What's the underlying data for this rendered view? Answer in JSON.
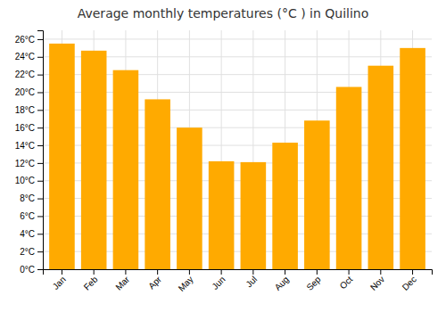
{
  "chart_data": {
    "type": "bar",
    "title": "Average monthly temperatures (°C ) in Quilino",
    "categories": [
      "Jan",
      "Feb",
      "Mar",
      "Apr",
      "May",
      "Jun",
      "Jul",
      "Aug",
      "Sep",
      "Oct",
      "Nov",
      "Dec"
    ],
    "values": [
      25.5,
      24.7,
      22.5,
      19.2,
      16.0,
      12.2,
      12.1,
      14.3,
      16.8,
      20.6,
      23.0,
      25.0
    ],
    "color": "#FFAA00",
    "ylim": [
      0,
      27
    ],
    "yticks": [
      {
        "value": 0,
        "label": "0°C"
      },
      {
        "value": 2,
        "label": "2°C"
      },
      {
        "value": 4,
        "label": "4°C"
      },
      {
        "value": 6,
        "label": "6°C"
      },
      {
        "value": 8,
        "label": "8°C"
      },
      {
        "value": 10,
        "label": "10°C"
      },
      {
        "value": 12,
        "label": "12°C"
      },
      {
        "value": 14,
        "label": "14°C"
      },
      {
        "value": 16,
        "label": "16°C"
      },
      {
        "value": 18,
        "label": "18°C"
      },
      {
        "value": 20,
        "label": "20°C"
      },
      {
        "value": 22,
        "label": "22°C"
      },
      {
        "value": 24,
        "label": "24°C"
      },
      {
        "value": 26,
        "label": "26°C"
      }
    ],
    "grid": true
  }
}
